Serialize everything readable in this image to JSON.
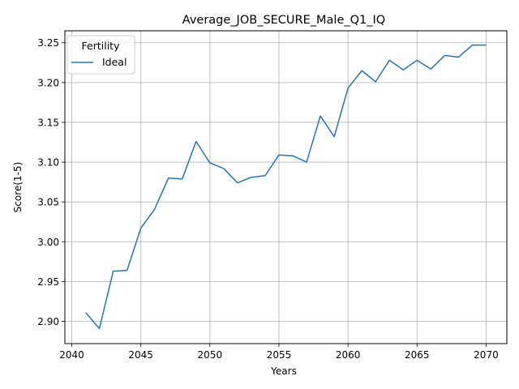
{
  "chart_data": {
    "type": "line",
    "title": "Average_JOB_SECURE_Male_Q1_IQ",
    "xlabel": "Years",
    "ylabel": "Score(1-5)",
    "xlim": [
      2039.5,
      2071.5
    ],
    "ylim": [
      2.872,
      3.265
    ],
    "xticks": [
      2040,
      2045,
      2050,
      2055,
      2060,
      2065,
      2070
    ],
    "yticks": [
      2.9,
      2.95,
      3.0,
      3.05,
      3.1,
      3.15,
      3.2,
      3.25
    ],
    "ytick_labels": [
      "2.90",
      "2.95",
      "3.00",
      "3.05",
      "3.10",
      "3.15",
      "3.20",
      "3.25"
    ],
    "grid": true,
    "legend": {
      "title": "Fertility",
      "placement": "top-left"
    },
    "series": [
      {
        "name": "Ideal",
        "color": "#1f77b4",
        "x": [
          2041,
          2042,
          2043,
          2044,
          2045,
          2046,
          2047,
          2048,
          2049,
          2050,
          2051,
          2052,
          2053,
          2054,
          2055,
          2056,
          2057,
          2058,
          2059,
          2060,
          2061,
          2062,
          2063,
          2064,
          2065,
          2066,
          2067,
          2068,
          2069,
          2070
        ],
        "values": [
          2.911,
          2.891,
          2.963,
          2.964,
          3.017,
          3.041,
          3.08,
          3.079,
          3.126,
          3.099,
          3.092,
          3.074,
          3.081,
          3.083,
          3.109,
          3.108,
          3.1,
          3.158,
          3.132,
          3.193,
          3.215,
          3.201,
          3.228,
          3.216,
          3.228,
          3.217,
          3.234,
          3.232,
          3.247,
          3.247
        ]
      }
    ]
  }
}
